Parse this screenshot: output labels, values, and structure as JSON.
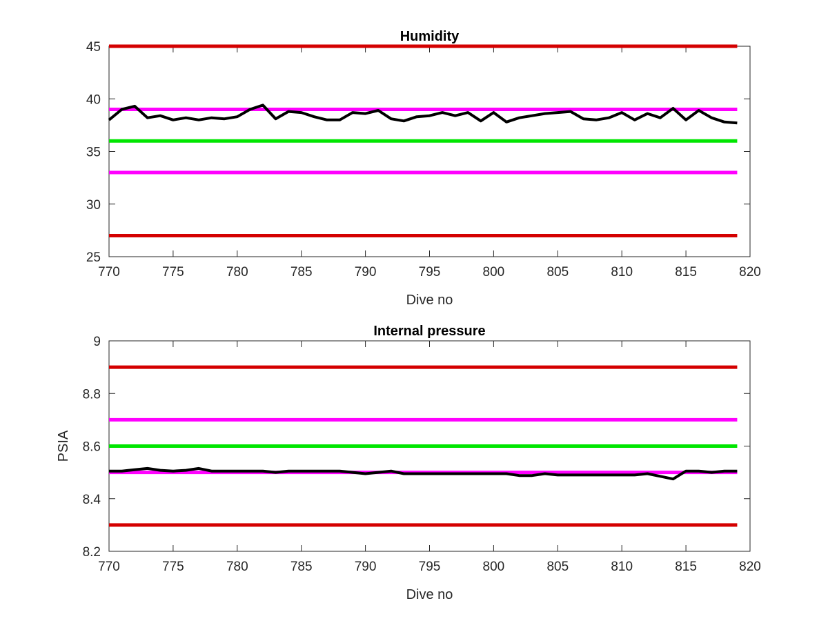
{
  "chart_data": [
    {
      "type": "line",
      "title": "Humidity",
      "xlabel": "Dive no",
      "ylabel": "",
      "xlim": [
        770,
        820
      ],
      "ylim": [
        25,
        45
      ],
      "xticks": [
        770,
        775,
        780,
        785,
        790,
        795,
        800,
        805,
        810,
        815,
        820
      ],
      "yticks": [
        25,
        30,
        35,
        40,
        45
      ],
      "grid": false,
      "reference_lines": [
        {
          "value": 45,
          "color": "#d40000"
        },
        {
          "value": 39,
          "color": "#ff00ff"
        },
        {
          "value": 36,
          "color": "#00e600"
        },
        {
          "value": 33,
          "color": "#ff00ff"
        },
        {
          "value": 27,
          "color": "#d40000"
        }
      ],
      "series": [
        {
          "color": "#000000",
          "x": [
            770,
            771,
            772,
            773,
            774,
            775,
            776,
            777,
            778,
            779,
            780,
            781,
            782,
            783,
            784,
            785,
            786,
            787,
            788,
            789,
            790,
            791,
            792,
            793,
            794,
            795,
            796,
            797,
            798,
            799,
            800,
            801,
            802,
            803,
            804,
            805,
            806,
            807,
            808,
            809,
            810,
            811,
            812,
            813,
            814,
            815,
            816,
            817,
            818,
            819
          ],
          "values": [
            38.0,
            39.0,
            39.3,
            38.2,
            38.4,
            38.0,
            38.2,
            38.0,
            38.2,
            38.1,
            38.3,
            39.0,
            39.4,
            38.1,
            38.8,
            38.7,
            38.3,
            38.0,
            38.0,
            38.7,
            38.6,
            38.9,
            38.1,
            37.9,
            38.3,
            38.4,
            38.7,
            38.4,
            38.7,
            37.9,
            38.7,
            37.8,
            38.2,
            38.4,
            38.6,
            38.7,
            38.8,
            38.1,
            38.0,
            38.2,
            38.7,
            38.0,
            38.6,
            38.2,
            39.1,
            38.0,
            38.9,
            38.2,
            37.8,
            37.7
          ]
        }
      ]
    },
    {
      "type": "line",
      "title": "Internal pressure",
      "xlabel": "Dive no",
      "ylabel": "PSIA",
      "xlim": [
        770,
        820
      ],
      "ylim": [
        8.2,
        9
      ],
      "xticks": [
        770,
        775,
        780,
        785,
        790,
        795,
        800,
        805,
        810,
        815,
        820
      ],
      "yticks": [
        "8.2",
        "8.4",
        "8.6",
        "8.8",
        "9"
      ],
      "grid": false,
      "reference_lines": [
        {
          "value": 8.9,
          "color": "#d40000"
        },
        {
          "value": 8.7,
          "color": "#ff00ff"
        },
        {
          "value": 8.6,
          "color": "#00e600"
        },
        {
          "value": 8.5,
          "color": "#ff00ff"
        },
        {
          "value": 8.3,
          "color": "#d40000"
        }
      ],
      "series": [
        {
          "color": "#000000",
          "x": [
            770,
            771,
            772,
            773,
            774,
            775,
            776,
            777,
            778,
            779,
            780,
            781,
            782,
            783,
            784,
            785,
            786,
            787,
            788,
            789,
            790,
            791,
            792,
            793,
            794,
            795,
            796,
            797,
            798,
            799,
            800,
            801,
            802,
            803,
            804,
            805,
            806,
            807,
            808,
            809,
            810,
            811,
            812,
            813,
            814,
            815,
            816,
            817,
            818,
            819
          ],
          "values": [
            8.505,
            8.505,
            8.51,
            8.515,
            8.508,
            8.505,
            8.508,
            8.515,
            8.505,
            8.505,
            8.505,
            8.505,
            8.505,
            8.5,
            8.505,
            8.505,
            8.505,
            8.505,
            8.505,
            8.5,
            8.495,
            8.5,
            8.505,
            8.495,
            8.495,
            8.495,
            8.495,
            8.495,
            8.495,
            8.495,
            8.495,
            8.495,
            8.488,
            8.488,
            8.495,
            8.49,
            8.49,
            8.49,
            8.49,
            8.49,
            8.49,
            8.49,
            8.495,
            8.485,
            8.475,
            8.505,
            8.505,
            8.5,
            8.505,
            8.505
          ]
        }
      ]
    }
  ]
}
